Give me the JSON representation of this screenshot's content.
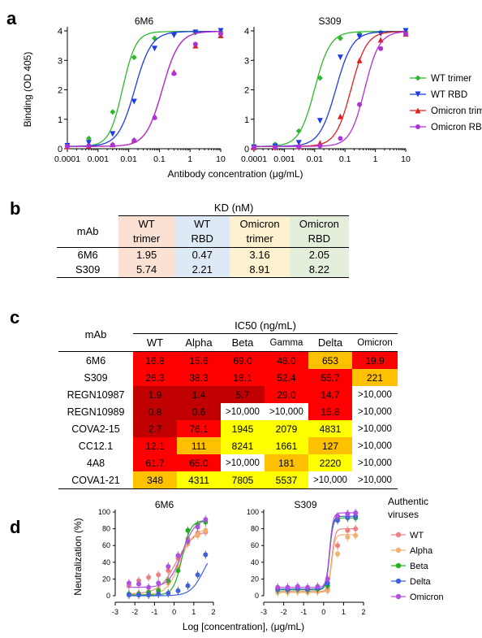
{
  "panels": {
    "a": "a",
    "b": "b",
    "c": "c",
    "d": "d"
  },
  "panel_a": {
    "ylabel": "Binding (OD 405)",
    "xlabel": "Antibody concentration (μg/mL)",
    "legend": [
      "WT trimer",
      "WT RBD",
      "Omicron trimer",
      "Omicron RBD"
    ]
  },
  "panel_b": {
    "header": "KD (nM)",
    "mab_label": "mAb",
    "columns": [
      [
        "WT",
        "trimer"
      ],
      [
        "WT",
        "RBD"
      ],
      [
        "Omicron",
        "trimer"
      ],
      [
        "Omicron",
        "RBD"
      ]
    ],
    "rows": [
      {
        "mab": "6M6",
        "values": [
          "1.95",
          "0.47",
          "3.16",
          "2.05"
        ]
      },
      {
        "mab": "S309",
        "values": [
          "5.74",
          "2.21",
          "8.91",
          "8.22"
        ]
      }
    ]
  },
  "panel_c": {
    "header": "IC50 (ng/mL)",
    "mab_label": "mAb",
    "columns": [
      "WT",
      "Alpha",
      "Beta",
      "Gamma",
      "Delta",
      "Omicron"
    ],
    "rows": [
      {
        "mab": "6M6",
        "values": [
          "16.8",
          "15.6",
          "69.0",
          "48.0",
          "653",
          "19.9"
        ]
      },
      {
        "mab": "S309",
        "values": [
          "26.3",
          "38.3",
          "18.1",
          "52.4",
          "55.7",
          "221"
        ]
      },
      {
        "mab": "REGN10987",
        "values": [
          "1.9",
          "1.4",
          "5.7",
          "29.0",
          "14.7",
          ">10,000"
        ]
      },
      {
        "mab": "REGN10989",
        "values": [
          "0.8",
          "0.6",
          ">10,000",
          ">10,000",
          "15.8",
          ">10,000"
        ]
      },
      {
        "mab": "COVA2-15",
        "values": [
          "2.7",
          "76.1",
          "1945",
          "2079",
          "4831",
          ">10,000"
        ]
      },
      {
        "mab": "CC12.1",
        "values": [
          "12.1",
          "111",
          "8241",
          "1661",
          "127",
          ">10,000"
        ]
      },
      {
        "mab": "4A8",
        "values": [
          "61.7",
          "65.0",
          ">10,000",
          "181",
          "2220",
          ">10,000"
        ]
      },
      {
        "mab": "COVA1-21",
        "values": [
          "348",
          "4311",
          "7805",
          "5537",
          ">10,000",
          ">10,000"
        ]
      }
    ]
  },
  "panel_d": {
    "ylabel": "Neutralization (%)",
    "xlabel": "Log [concentration], (μg/mL)",
    "legend_title": [
      "Authentic",
      "viruses"
    ],
    "legend": [
      "WT",
      "Alpha",
      "Beta",
      "Delta",
      "Omicron"
    ]
  },
  "chart_data": [
    {
      "type": "line",
      "title": "6M6",
      "xscale": "log",
      "xlim": [
        0.0001,
        10
      ],
      "ylim": [
        0,
        4
      ],
      "xticks": [
        "0.0001",
        "0.001",
        "0.01",
        "0.1",
        "1",
        "10"
      ],
      "yticks": [
        "0",
        "1",
        "2",
        "3",
        "4"
      ],
      "x": [
        0.0001,
        0.0005,
        0.003,
        0.015,
        0.07,
        0.3,
        1.5,
        10
      ],
      "series": [
        {
          "name": "WT trimer",
          "color": "#2db82d",
          "marker": "diamond",
          "values": [
            0.12,
            0.35,
            1.25,
            3.1,
            3.75,
            3.9,
            3.95,
            3.97
          ]
        },
        {
          "name": "WT RBD",
          "color": "#1f3be6",
          "marker": "tri-down",
          "values": [
            0.1,
            0.2,
            0.5,
            1.6,
            3.4,
            3.85,
            3.95,
            4.0
          ]
        },
        {
          "name": "Omicron trimer",
          "color": "#e02020",
          "marker": "tri-up",
          "values": [
            0.08,
            0.1,
            0.15,
            0.3,
            1.1,
            2.6,
            3.5,
            3.85
          ]
        },
        {
          "name": "Omicron RBD",
          "color": "#b030d8",
          "marker": "circle",
          "values": [
            0.08,
            0.1,
            0.13,
            0.28,
            1.05,
            2.55,
            3.55,
            3.9
          ]
        }
      ]
    },
    {
      "type": "line",
      "title": "S309",
      "xscale": "log",
      "xlim": [
        0.0001,
        10
      ],
      "ylim": [
        0,
        4
      ],
      "xticks": [
        "0.0001",
        "0.001",
        "0.01",
        "0.1",
        "1",
        "10"
      ],
      "x": [
        0.0001,
        0.0005,
        0.003,
        0.015,
        0.07,
        0.3,
        1.5,
        10
      ],
      "series": [
        {
          "name": "WT trimer",
          "color": "#2db82d",
          "marker": "diamond",
          "values": [
            0.1,
            0.15,
            0.6,
            2.4,
            3.75,
            3.9,
            3.95,
            3.97
          ]
        },
        {
          "name": "WT RBD",
          "color": "#1f3be6",
          "marker": "tri-down",
          "values": [
            0.05,
            0.08,
            0.2,
            0.95,
            3.1,
            3.8,
            3.9,
            4.0
          ]
        },
        {
          "name": "Omicron trimer",
          "color": "#e02020",
          "marker": "tri-up",
          "values": [
            0.05,
            0.06,
            0.08,
            0.2,
            1.1,
            3.0,
            3.7,
            3.9
          ]
        },
        {
          "name": "Omicron RBD",
          "color": "#b030d8",
          "marker": "circle",
          "values": [
            0.05,
            0.05,
            0.06,
            0.1,
            0.35,
            1.5,
            3.4,
            3.9
          ]
        }
      ]
    },
    {
      "type": "scatter",
      "title": "6M6",
      "xlim": [
        -3,
        2
      ],
      "ylim": [
        0,
        100
      ],
      "xticks": [
        "-3",
        "-2",
        "-1",
        "0",
        "1",
        "2"
      ],
      "yticks": [
        "0",
        "20",
        "40",
        "60",
        "80",
        "100"
      ],
      "x": [
        -2.3,
        -1.8,
        -1.3,
        -0.8,
        -0.3,
        0.2,
        0.7,
        1.2,
        1.6
      ],
      "series": [
        {
          "name": "WT",
          "color": "#f08080",
          "values": [
            12,
            18,
            22,
            25,
            30,
            45,
            68,
            75,
            76
          ]
        },
        {
          "name": "Alpha",
          "color": "#f0b070",
          "values": [
            2,
            3,
            5,
            8,
            15,
            35,
            62,
            72,
            78
          ]
        },
        {
          "name": "Beta",
          "color": "#20b020",
          "values": [
            2,
            2,
            4,
            6,
            18,
            30,
            78,
            85,
            88
          ]
        },
        {
          "name": "Delta",
          "color": "#4060e0",
          "values": [
            1,
            1,
            1,
            2,
            3,
            6,
            12,
            25,
            49
          ]
        },
        {
          "name": "Omicron",
          "color": "#b050e0",
          "values": [
            15,
            14,
            10,
            15,
            35,
            48,
            65,
            82,
            91
          ]
        }
      ]
    },
    {
      "type": "scatter",
      "title": "S309",
      "xlim": [
        -3,
        2
      ],
      "ylim": [
        0,
        100
      ],
      "xticks": [
        "-3",
        "-2",
        "-1",
        "0",
        "1",
        "2"
      ],
      "yticks": [
        "0",
        "20",
        "40",
        "60",
        "80",
        "100"
      ],
      "x": [
        -2.3,
        -1.8,
        -1.3,
        -0.8,
        -0.3,
        0.2,
        0.7,
        1.2,
        1.6
      ],
      "series": [
        {
          "name": "WT",
          "color": "#f08080",
          "values": [
            5,
            6,
            5,
            6,
            5,
            8,
            60,
            78,
            80
          ]
        },
        {
          "name": "Alpha",
          "color": "#f0b070",
          "values": [
            4,
            4,
            5,
            4,
            5,
            6,
            50,
            70,
            72
          ]
        },
        {
          "name": "Beta",
          "color": "#20b020",
          "values": [
            7,
            7,
            8,
            7,
            8,
            12,
            92,
            93,
            93
          ]
        },
        {
          "name": "Delta",
          "color": "#4060e0",
          "values": [
            8,
            8,
            9,
            8,
            9,
            15,
            90,
            94,
            95
          ]
        },
        {
          "name": "Omicron",
          "color": "#b050e0",
          "values": [
            10,
            10,
            11,
            10,
            11,
            20,
            95,
            98,
            99
          ]
        }
      ]
    }
  ]
}
